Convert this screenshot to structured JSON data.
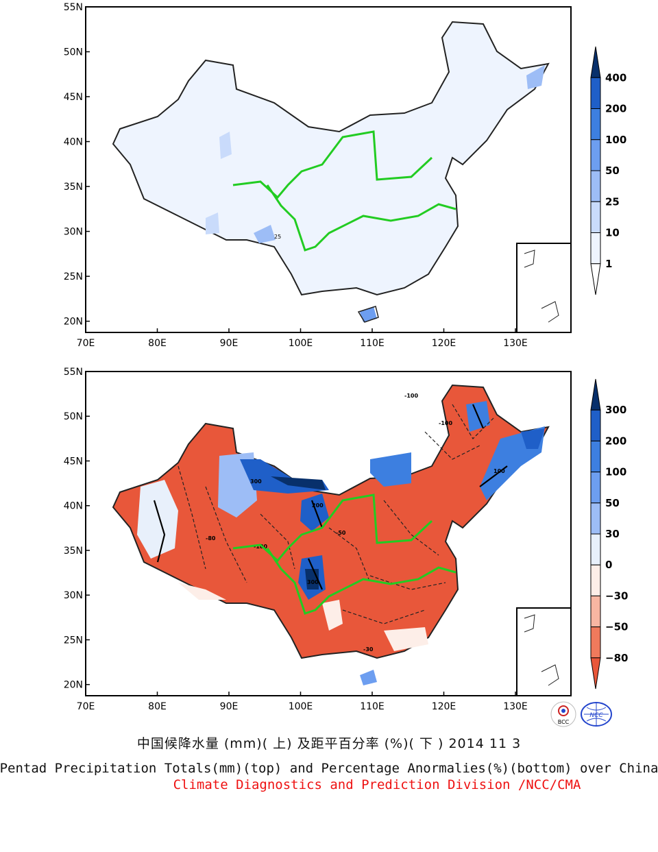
{
  "maps": [
    {
      "id": "top",
      "lat_labels": [
        "55N",
        "50N",
        "45N",
        "40N",
        "35N",
        "30N",
        "25N",
        "20N"
      ],
      "lon_labels": [
        "70E",
        "80E",
        "90E",
        "100E",
        "110E",
        "120E",
        "130E"
      ],
      "legend": {
        "levels": [
          "400",
          "200",
          "100",
          "50",
          "25",
          "10",
          "1"
        ],
        "colors": [
          "#08306b",
          "#1f5fc8",
          "#3d7fe0",
          "#6d9ef0",
          "#9dbdf6",
          "#c9dbfb",
          "#eef4fe",
          "#ffffff"
        ]
      },
      "contour_label": "25"
    },
    {
      "id": "bottom",
      "lat_labels": [
        "55N",
        "50N",
        "45N",
        "40N",
        "35N",
        "30N",
        "25N",
        "20N"
      ],
      "lon_labels": [
        "70E",
        "80E",
        "90E",
        "100E",
        "110E",
        "120E",
        "130E"
      ],
      "legend": {
        "levels": [
          "300",
          "200",
          "100",
          "50",
          "30",
          "0",
          "−30",
          "−50",
          "−80"
        ],
        "colors": [
          "#08306b",
          "#1f5fc8",
          "#3d7fe0",
          "#6d9ef0",
          "#9dbdf6",
          "#e8f0fb",
          "#fdeee8",
          "#f8b6a2",
          "#f07a5c",
          "#e8573a"
        ]
      },
      "contour_labels": [
        "-100",
        "-80",
        "-50",
        "-30",
        "100",
        "200",
        "300"
      ]
    }
  ],
  "captions": {
    "chinese": "中国候降水量 (mm)( 上) 及距平百分率 (%)( 下 ) 2014 11 3",
    "english": "Pentad Precipitation Totals(mm)(top) and Percentage Anormalies(%)(bottom) over China",
    "source": "Climate Diagnostics and Prediction Division /NCC/CMA"
  },
  "logos": [
    "BCC",
    "NCC"
  ],
  "colors": {
    "river": "#22cc22",
    "border": "#222222",
    "positive": "#1f5fc8",
    "negative": "#e8573a"
  }
}
